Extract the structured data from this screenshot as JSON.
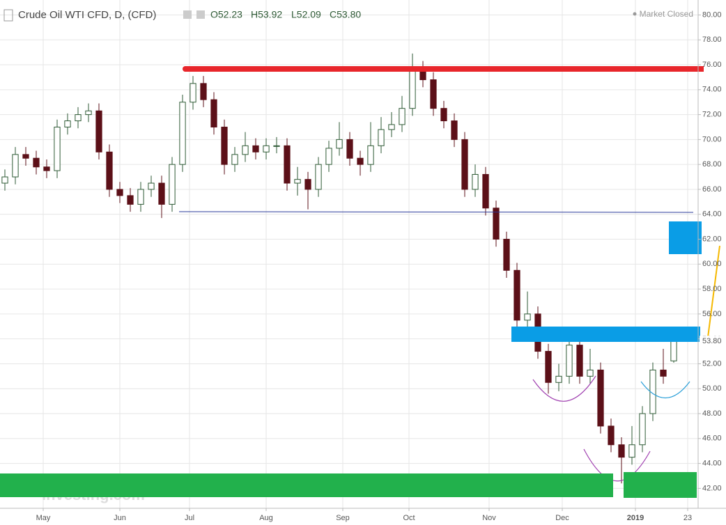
{
  "header": {
    "symbol": "Crude Oil WTI CFD, D, (CFD)",
    "quote": [
      "O52.23",
      "H53.92",
      "L52.09",
      "C53.80"
    ],
    "status": "Market Closed",
    "watermark": "Investing.com"
  },
  "chart_data": {
    "type": "candlestick",
    "x": [
      -11,
      -8,
      -5,
      -2,
      1,
      4,
      7,
      10,
      13,
      16,
      19,
      22,
      25,
      28,
      31,
      34,
      37,
      40,
      43,
      46,
      49,
      52,
      55,
      58,
      61,
      64,
      67,
      70,
      73,
      76,
      79,
      82,
      85,
      88,
      91,
      94,
      97,
      100,
      103,
      106,
      109,
      112,
      115,
      118,
      121,
      124,
      127,
      130,
      133,
      136,
      139,
      142,
      145,
      148,
      151,
      154,
      157,
      160,
      163,
      166,
      169,
      172,
      175,
      178,
      181
    ],
    "open": [
      66.5,
      67,
      68.8,
      68.5,
      67.8,
      67.5,
      71,
      71.5,
      72,
      72.3,
      69,
      66,
      65.5,
      64.8,
      66,
      66.5,
      64.8,
      68,
      73,
      74.5,
      73.2,
      71,
      68,
      68.8,
      69.5,
      69,
      69.5,
      69.5,
      66.5,
      66.8,
      66,
      68,
      69.3,
      70,
      68.5,
      68,
      69.5,
      70.8,
      71.2,
      72.5,
      75.5,
      74.8,
      72.5,
      71.5,
      70,
      66,
      67.2,
      64.5,
      62,
      59.5,
      55.5,
      56,
      53,
      50.5,
      51,
      53.5,
      51,
      51.5,
      47,
      45.5,
      44.5,
      45.5,
      48,
      51.5,
      52.23
    ],
    "high": [
      67.6,
      69.4,
      69.4,
      69.1,
      68.4,
      71.6,
      72.1,
      72.6,
      72.9,
      72.9,
      69.6,
      66.6,
      66.1,
      66.6,
      67.1,
      67.1,
      68.6,
      73.6,
      75.1,
      75.1,
      73.8,
      71.6,
      69.4,
      70.6,
      70.1,
      70.1,
      70.2,
      70.1,
      67.8,
      67.4,
      68.6,
      69.9,
      71.4,
      70.6,
      69.1,
      71.4,
      71.8,
      72.2,
      73.5,
      76.9,
      76.3,
      75.4,
      73.1,
      72.1,
      70.6,
      68,
      67.8,
      65.1,
      62.6,
      60.1,
      57.8,
      56.6,
      53.6,
      52,
      54.1,
      54.1,
      53.2,
      52.1,
      47.6,
      46.1,
      47,
      48.6,
      52.1,
      53.2,
      53.92
    ],
    "low": [
      65.9,
      66.4,
      67.9,
      67.2,
      66.9,
      66.9,
      70.4,
      70.9,
      71.4,
      68.4,
      65.4,
      64.9,
      64.2,
      64.2,
      65.4,
      63.7,
      64.2,
      67.4,
      72.4,
      72.6,
      70.4,
      67.2,
      67.4,
      68.2,
      68.4,
      68.4,
      68.9,
      65.9,
      65.5,
      64.4,
      65.4,
      67.4,
      68.7,
      67.9,
      67.1,
      67.4,
      68.9,
      70.2,
      70.6,
      71.9,
      74.2,
      71.9,
      70.9,
      69.4,
      65.4,
      65.4,
      63.9,
      61.4,
      58.9,
      54.9,
      54.9,
      52.4,
      49.6,
      49.8,
      50.4,
      50.4,
      50.4,
      46.4,
      44.9,
      42.4,
      43.9,
      44.9,
      47.4,
      50.4,
      52.09
    ],
    "close": [
      67,
      68.8,
      68.5,
      67.8,
      67.5,
      71,
      71.5,
      72,
      72.3,
      69,
      66,
      65.5,
      64.8,
      66,
      66.5,
      64.8,
      68,
      73,
      74.5,
      73.2,
      71,
      68,
      68.8,
      69.5,
      69,
      69.5,
      69.5,
      66.5,
      66.8,
      66,
      68,
      69.3,
      70,
      68.5,
      68,
      69.5,
      70.8,
      71.2,
      72.5,
      75.5,
      74.8,
      72.5,
      71.5,
      70,
      66,
      67.2,
      64.5,
      62,
      59.5,
      55.5,
      56,
      53,
      50.5,
      51,
      53.5,
      51,
      51.5,
      47,
      45.5,
      44.5,
      45.5,
      48,
      51.5,
      51,
      53.8
    ],
    "up_color": "#ffffff",
    "up_edge": "#2e5a35",
    "down_color": "#5c1018",
    "xlim": [
      -12.4,
      188
    ],
    "xticks": [
      {
        "value": 0,
        "label": "May"
      },
      {
        "value": 22,
        "label": "Jun"
      },
      {
        "value": 42,
        "label": "Jul"
      },
      {
        "value": 64,
        "label": "Aug"
      },
      {
        "value": 86,
        "label": "Sep"
      },
      {
        "value": 105,
        "label": "Oct"
      },
      {
        "value": 128,
        "label": "Nov"
      },
      {
        "value": 149,
        "label": "Dec"
      },
      {
        "value": 170,
        "label": "2019"
      },
      {
        "value": 185,
        "label": "23"
      }
    ],
    "ylim": [
      40.4,
      81.2
    ],
    "yticks": [
      {
        "value": 42,
        "label": "42.00"
      },
      {
        "value": 44,
        "label": "44.00"
      },
      {
        "value": 46,
        "label": "46.00"
      },
      {
        "value": 48,
        "label": "48.00"
      },
      {
        "value": 50,
        "label": "50.00"
      },
      {
        "value": 52,
        "label": "52.00"
      },
      {
        "value": 54,
        "label": "54.00"
      },
      {
        "value": 56,
        "label": "56.00"
      },
      {
        "value": 58,
        "label": "58.00"
      },
      {
        "value": 60,
        "label": "60.00"
      },
      {
        "value": 62,
        "label": "62.00"
      },
      {
        "value": 64,
        "label": "64.00"
      },
      {
        "value": 66,
        "label": "66.00"
      },
      {
        "value": 68,
        "label": "68.00"
      },
      {
        "value": 70,
        "label": "70.00"
      },
      {
        "value": 72,
        "label": "72.00"
      },
      {
        "value": 74,
        "label": "74.00"
      },
      {
        "value": 76,
        "label": "76.00"
      },
      {
        "value": 78,
        "label": "78.00"
      },
      {
        "value": 80,
        "label": "80.00"
      }
    ],
    "price_label": {
      "value": 53.8,
      "label": "53.80"
    },
    "grid": true
  }
}
